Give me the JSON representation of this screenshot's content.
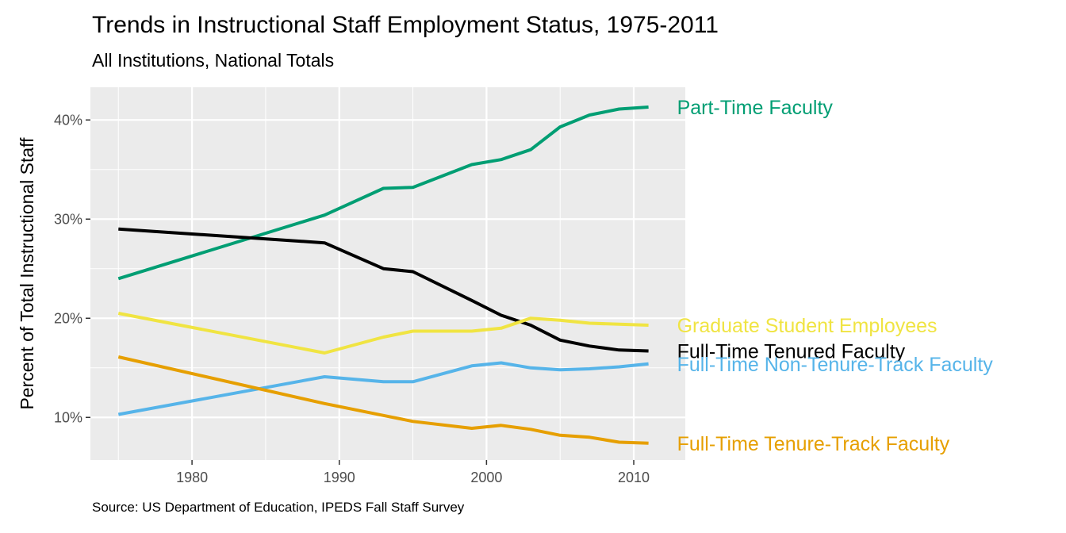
{
  "title": "Trends in Instructional Staff Employment Status, 1975-2011",
  "subtitle": "All Institutions, National Totals",
  "caption": "Source: US Department of Education, IPEDS Fall Staff Survey",
  "chart_data": {
    "type": "line",
    "title": "Trends in Instructional Staff Employment Status, 1975-2011",
    "subtitle": "All Institutions, National Totals",
    "xlabel": "",
    "ylabel": "Percent of Total Instructional Staff",
    "xlim": [
      1973.1,
      2013.5
    ],
    "ylim": [
      5.7,
      43.3
    ],
    "x_ticks": [
      1980,
      1990,
      2000,
      2010
    ],
    "x_tick_labels": [
      "1980",
      "1990",
      "2000",
      "2010"
    ],
    "y_ticks": [
      10,
      20,
      30,
      40
    ],
    "y_tick_labels": [
      "10%",
      "20%",
      "30%",
      "40%"
    ],
    "panel_background": "#ebebeb",
    "grid": true,
    "legend": "direct labels at line ends",
    "x": [
      1975,
      1989,
      1993,
      1995,
      1999,
      2001,
      2003,
      2005,
      2007,
      2009,
      2011
    ],
    "series": [
      {
        "name": "Part-Time Faculty",
        "color": "#009E73",
        "values": [
          24.0,
          30.4,
          33.1,
          33.2,
          35.5,
          36.0,
          37.0,
          39.3,
          40.5,
          41.1,
          41.3
        ]
      },
      {
        "name": "Full-Time Tenured Faculty",
        "color": "#000000",
        "values": [
          29.0,
          27.6,
          25.0,
          24.7,
          21.8,
          20.3,
          19.3,
          17.8,
          17.2,
          16.8,
          16.7
        ]
      },
      {
        "name": "Graduate Student Employees",
        "color": "#F0E442",
        "values": [
          20.5,
          16.5,
          18.1,
          18.7,
          18.7,
          19.0,
          20.0,
          19.8,
          19.5,
          19.4,
          19.3
        ]
      },
      {
        "name": "Full-Time Non-Tenure-Track Faculty",
        "color": "#56B4E9",
        "values": [
          10.3,
          14.1,
          13.6,
          13.6,
          15.2,
          15.5,
          15.0,
          14.8,
          14.9,
          15.1,
          15.4
        ]
      },
      {
        "name": "Full-Time Tenure-Track Faculty",
        "color": "#E69F00",
        "values": [
          16.1,
          11.4,
          10.2,
          9.6,
          8.9,
          9.2,
          8.8,
          8.2,
          8.0,
          7.5,
          7.4
        ]
      }
    ]
  }
}
